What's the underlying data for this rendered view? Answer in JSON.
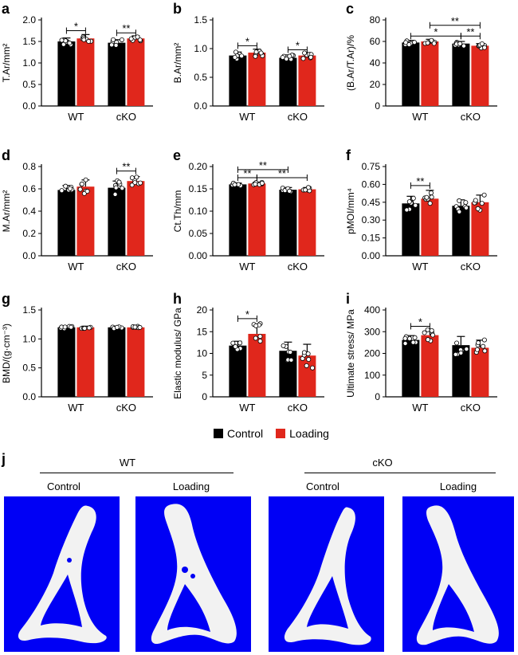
{
  "chart_data": [
    {
      "panel": "a",
      "type": "bar",
      "categories": [
        "WT",
        "cKO"
      ],
      "ylabel": "T.Ar/mm²",
      "ylim": [
        0,
        2.0
      ],
      "yticks": [
        0,
        0.5,
        1.0,
        1.5,
        2.0
      ],
      "yticklabels": [
        "0.0",
        "0.5",
        "1.0",
        "1.5",
        "2.0"
      ],
      "series": [
        {
          "name": "Control",
          "values": [
            1.5,
            1.47
          ],
          "err": [
            0.08,
            0.07
          ]
        },
        {
          "name": "Loading",
          "values": [
            1.57,
            1.57
          ],
          "err": [
            0.09,
            0.06
          ]
        }
      ],
      "sig": [
        {
          "from": [
            0,
            0
          ],
          "to": [
            0,
            1
          ],
          "y": 1.75,
          "text": "*"
        },
        {
          "from": [
            1,
            0
          ],
          "to": [
            1,
            1
          ],
          "y": 1.7,
          "text": "**"
        }
      ]
    },
    {
      "panel": "b",
      "type": "bar",
      "categories": [
        "WT",
        "cKO"
      ],
      "ylabel": "B.Ar/mm²",
      "ylim": [
        0,
        1.5
      ],
      "yticks": [
        0,
        0.5,
        1.0,
        1.5
      ],
      "yticklabels": [
        "0.0",
        "0.5",
        "1.0",
        "1.5"
      ],
      "series": [
        {
          "name": "Control",
          "values": [
            0.88,
            0.84
          ],
          "err": [
            0.06,
            0.05
          ]
        },
        {
          "name": "Loading",
          "values": [
            0.93,
            0.88
          ],
          "err": [
            0.06,
            0.05
          ]
        }
      ],
      "sig": [
        {
          "from": [
            0,
            0
          ],
          "to": [
            0,
            1
          ],
          "y": 1.05,
          "text": "*"
        },
        {
          "from": [
            1,
            0
          ],
          "to": [
            1,
            1
          ],
          "y": 0.98,
          "text": "*"
        }
      ]
    },
    {
      "panel": "c",
      "type": "bar",
      "categories": [
        "WT",
        "cKO"
      ],
      "ylabel": "(B.Ar/T.Ar)/%",
      "ylim": [
        0,
        80
      ],
      "yticks": [
        0,
        20,
        40,
        60,
        80
      ],
      "yticklabels": [
        "0",
        "20",
        "40",
        "60",
        "80"
      ],
      "series": [
        {
          "name": "Control",
          "values": [
            59,
            58
          ],
          "err": [
            2,
            2
          ]
        },
        {
          "name": "Loading",
          "values": [
            60,
            56
          ],
          "err": [
            2,
            2
          ]
        }
      ],
      "sig": [
        {
          "from": [
            0,
            0
          ],
          "to": [
            1,
            0
          ],
          "y": 65,
          "text": "*"
        },
        {
          "from": [
            1,
            0
          ],
          "to": [
            1,
            1
          ],
          "y": 65,
          "text": "**"
        },
        {
          "from": [
            0,
            1
          ],
          "to": [
            1,
            1
          ],
          "y": 75,
          "text": "**"
        }
      ]
    },
    {
      "panel": "d",
      "type": "bar",
      "categories": [
        "WT",
        "cKO"
      ],
      "ylabel": "M.Ar/mm²",
      "ylim": [
        0,
        0.8
      ],
      "yticks": [
        0,
        0.2,
        0.4,
        0.6,
        0.8
      ],
      "yticklabels": [
        "0.0",
        "0.2",
        "0.4",
        "0.6",
        "0.8"
      ],
      "series": [
        {
          "name": "Control",
          "values": [
            0.59,
            0.61
          ],
          "err": [
            0.04,
            0.06
          ]
        },
        {
          "name": "Loading",
          "values": [
            0.62,
            0.67
          ],
          "err": [
            0.06,
            0.04
          ]
        }
      ],
      "sig": [
        {
          "from": [
            1,
            0
          ],
          "to": [
            1,
            1
          ],
          "y": 0.76,
          "text": "**"
        }
      ]
    },
    {
      "panel": "e",
      "type": "bar",
      "categories": [
        "WT",
        "cKO"
      ],
      "ylabel": "Ct.Th/mm",
      "ylim": [
        0,
        0.2
      ],
      "yticks": [
        0,
        0.05,
        0.1,
        0.15,
        0.2
      ],
      "yticklabels": [
        "0.00",
        "0.05",
        "0.10",
        "0.15",
        "0.20"
      ],
      "series": [
        {
          "name": "Control",
          "values": [
            0.16,
            0.148
          ],
          "err": [
            0.003,
            0.005
          ]
        },
        {
          "name": "Loading",
          "values": [
            0.162,
            0.149
          ],
          "err": [
            0.003,
            0.004
          ]
        }
      ],
      "sig": [
        {
          "from": [
            0,
            0
          ],
          "to": [
            0,
            1
          ],
          "y": 0.175,
          "text": "**"
        },
        {
          "from": [
            0,
            1
          ],
          "to": [
            1,
            1
          ],
          "y": 0.175,
          "text": "**"
        },
        {
          "from": [
            0,
            0
          ],
          "to": [
            1,
            0
          ],
          "y": 0.193,
          "text": "**"
        }
      ]
    },
    {
      "panel": "f",
      "type": "bar",
      "categories": [
        "WT",
        "cKO"
      ],
      "ylabel": "pMOI/mm⁴",
      "ylim": [
        0,
        0.75
      ],
      "yticks": [
        0,
        0.15,
        0.3,
        0.45,
        0.6,
        0.75
      ],
      "yticklabels": [
        "0.00",
        "0.15",
        "0.30",
        "0.45",
        "0.60",
        "0.75"
      ],
      "series": [
        {
          "name": "Control",
          "values": [
            0.44,
            0.42
          ],
          "err": [
            0.06,
            0.05
          ]
        },
        {
          "name": "Loading",
          "values": [
            0.48,
            0.45
          ],
          "err": [
            0.07,
            0.06
          ]
        }
      ],
      "sig": [
        {
          "from": [
            0,
            0
          ],
          "to": [
            0,
            1
          ],
          "y": 0.59,
          "text": "**"
        }
      ]
    },
    {
      "panel": "g",
      "type": "bar",
      "categories": [
        "WT",
        "cKO"
      ],
      "ylabel": "BMD/(g·cm⁻³)",
      "ylim": [
        0,
        1.5
      ],
      "yticks": [
        0,
        0.5,
        1.0,
        1.5
      ],
      "yticklabels": [
        "0.0",
        "0.5",
        "1.0",
        "1.5"
      ],
      "series": [
        {
          "name": "Control",
          "values": [
            1.2,
            1.2
          ],
          "err": [
            0.02,
            0.02
          ]
        },
        {
          "name": "Loading",
          "values": [
            1.2,
            1.2
          ],
          "err": [
            0.02,
            0.02
          ]
        }
      ],
      "sig": []
    },
    {
      "panel": "h",
      "type": "bar",
      "categories": [
        "WT",
        "cKO"
      ],
      "ylabel": "Elastic modulus/ GPa",
      "ylim": [
        0,
        20
      ],
      "yticks": [
        0,
        5,
        10,
        15,
        20
      ],
      "yticklabels": [
        "0",
        "5",
        "10",
        "15",
        "20"
      ],
      "series": [
        {
          "name": "Control",
          "values": [
            11.8,
            10.6
          ],
          "err": [
            1.0,
            2.0
          ]
        },
        {
          "name": "Loading",
          "values": [
            14.5,
            9.5
          ],
          "err": [
            2.3,
            2.6
          ]
        }
      ],
      "sig": [
        {
          "from": [
            0,
            0
          ],
          "to": [
            0,
            1
          ],
          "y": 18.0,
          "text": "*"
        }
      ]
    },
    {
      "panel": "i",
      "type": "bar",
      "categories": [
        "WT",
        "cKO"
      ],
      "ylabel": "Ultimate stress/ MPa",
      "ylim": [
        0,
        400
      ],
      "yticks": [
        0,
        100,
        200,
        300,
        400
      ],
      "yticklabels": [
        "0",
        "100",
        "200",
        "300",
        "400"
      ],
      "series": [
        {
          "name": "Control",
          "values": [
            262,
            238
          ],
          "err": [
            20,
            40
          ]
        },
        {
          "name": "Loading",
          "values": [
            284,
            226
          ],
          "err": [
            25,
            35
          ]
        }
      ],
      "sig": [
        {
          "from": [
            0,
            0
          ],
          "to": [
            0,
            1
          ],
          "y": 325,
          "text": "*"
        }
      ]
    }
  ],
  "colors": {
    "control": "#000000",
    "loading": "#e0271c",
    "scan_background": "#0000f5",
    "bone": "#f2f2f2"
  },
  "legend": {
    "control_label": "Control",
    "loading_label": "Loading"
  },
  "panel_j": {
    "label": "j",
    "wt_title": "WT",
    "cko_title": "cKO",
    "control_label_1": "Control",
    "loading_label_1": "Loading",
    "control_label_2": "Control",
    "loading_label_2": "Loading"
  }
}
